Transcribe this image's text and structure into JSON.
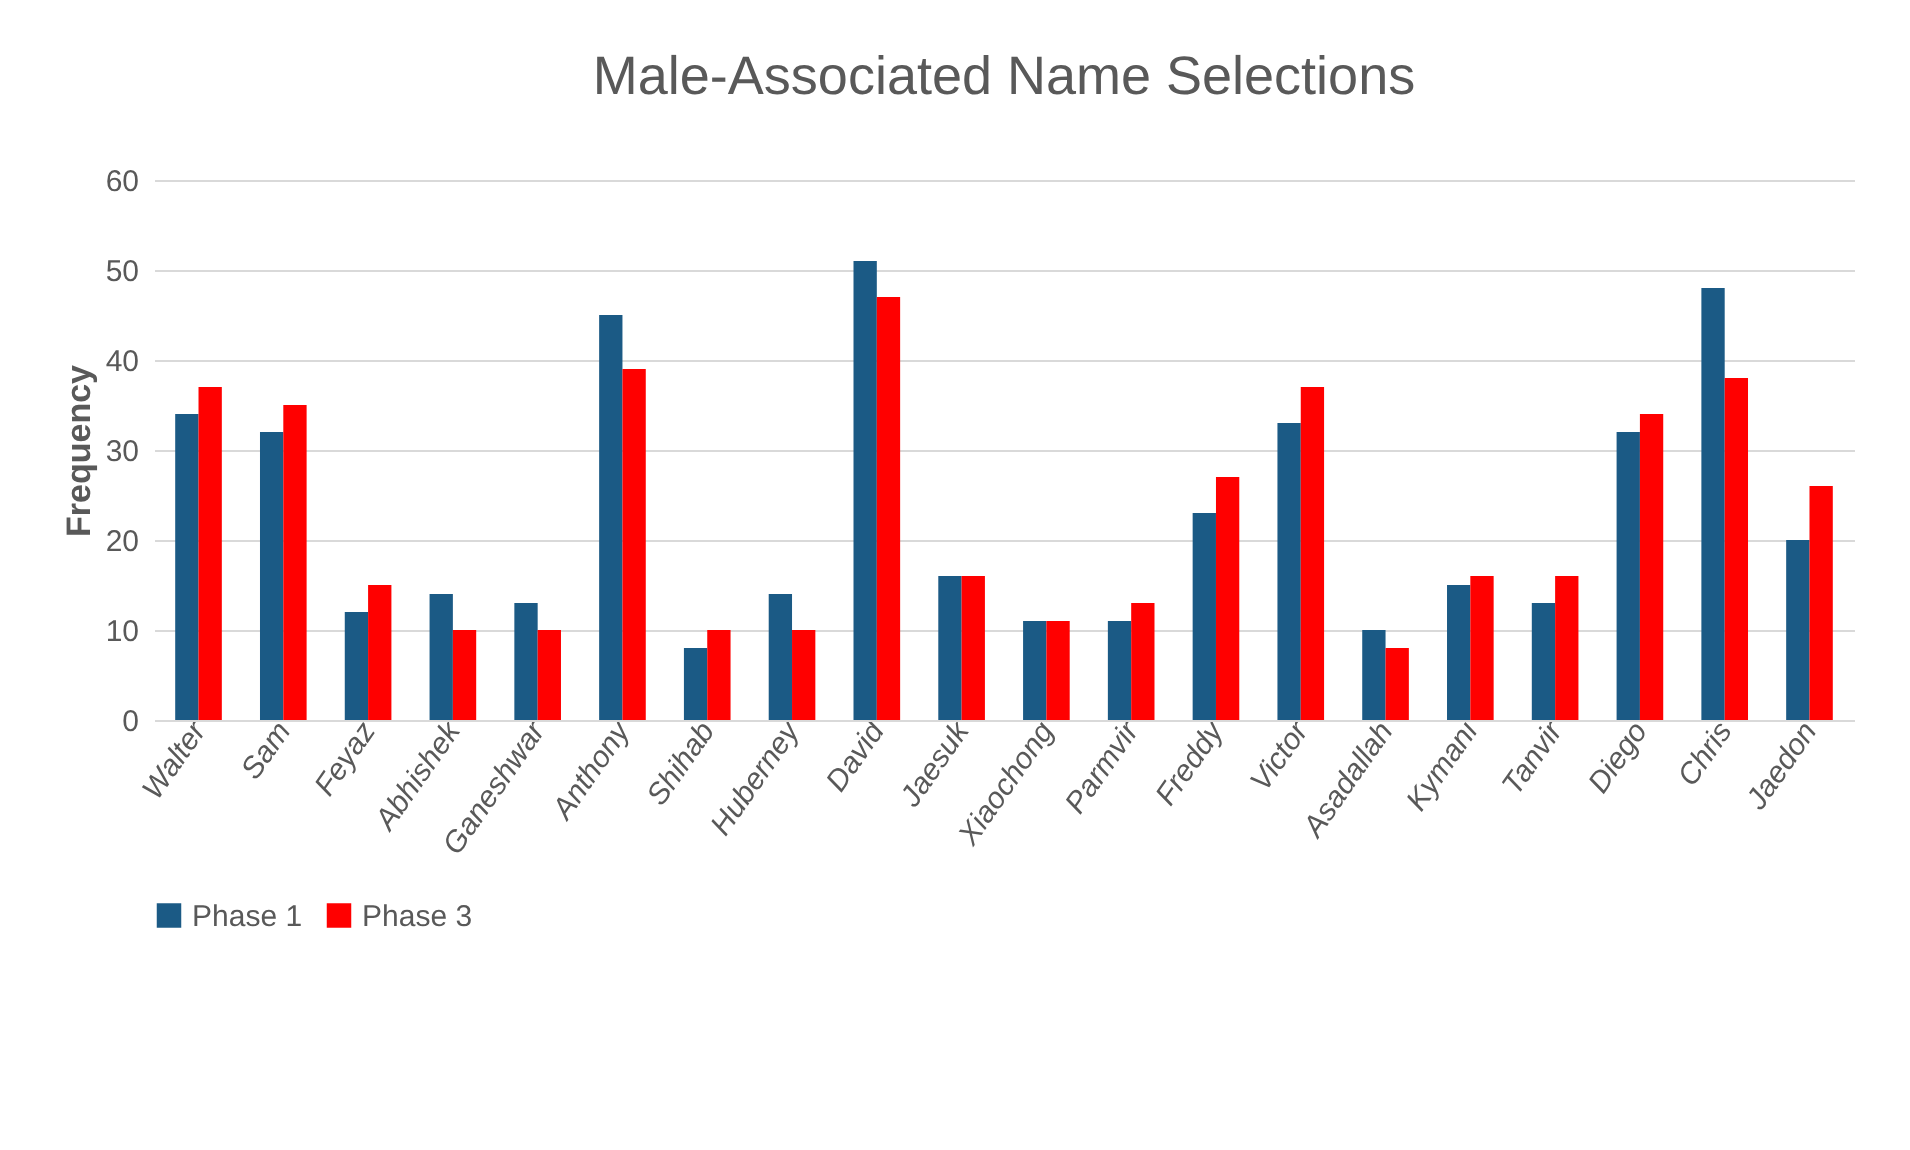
{
  "chart_data": {
    "type": "bar",
    "title": "Male-Associated Name Selections",
    "ylabel": "Frequency",
    "categories": [
      "Walter",
      "Sam",
      "Feyaz",
      "Abhishek",
      "Ganeshwar",
      "Anthony",
      "Shihab",
      "Huberney",
      "David",
      "Jaesuk",
      "Xiaochong",
      "Parmvir",
      "Freddy",
      "Victor",
      "Asadallah",
      "Kymani",
      "Tanvir",
      "Diego",
      "Chris",
      "Jaedon"
    ],
    "series": [
      {
        "name": "Phase 1",
        "color": "#1b5a85",
        "values": [
          34,
          32,
          12,
          14,
          13,
          45,
          8,
          14,
          51,
          16,
          11,
          11,
          23,
          33,
          10,
          15,
          13,
          32,
          48,
          20
        ]
      },
      {
        "name": "Phase 3",
        "color": "#ff0000",
        "values": [
          37,
          35,
          15,
          10,
          10,
          39,
          10,
          10,
          47,
          16,
          11,
          13,
          27,
          37,
          8,
          16,
          16,
          34,
          38,
          26
        ]
      }
    ],
    "ylim": [
      0,
      60
    ],
    "yticks": [
      0,
      10,
      20,
      30,
      40,
      50,
      60
    ],
    "grid": "y",
    "legend": "bottom"
  }
}
